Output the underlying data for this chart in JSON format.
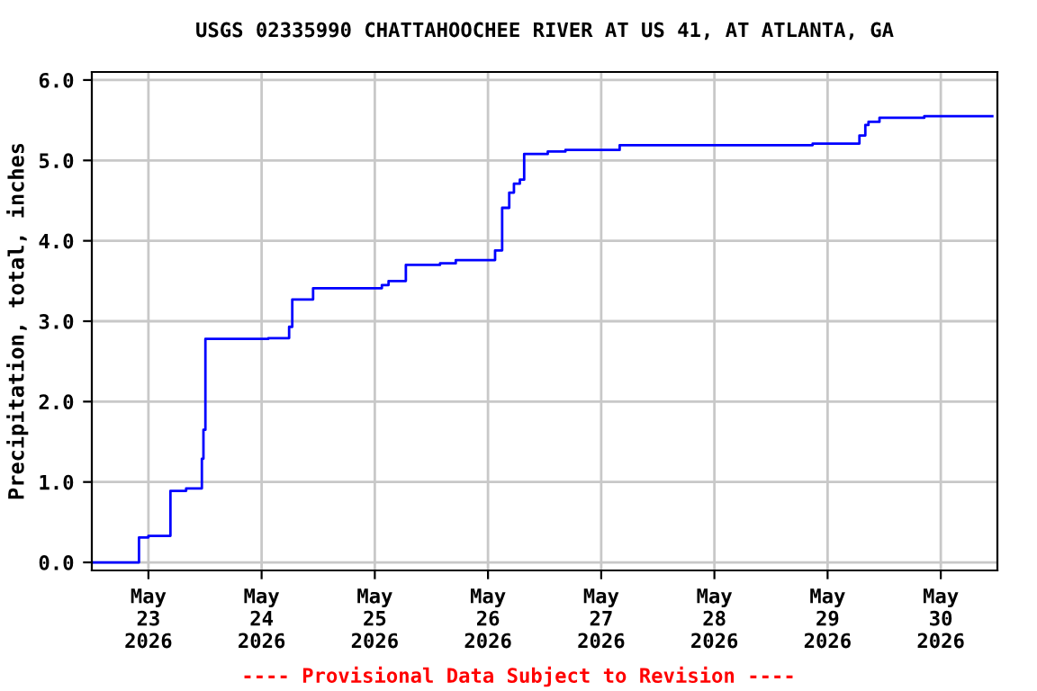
{
  "chart_data": {
    "type": "step",
    "title": "USGS 02335990 CHATTAHOOCHEE RIVER AT US 41, AT ATLANTA, GA",
    "ylabel": "Precipitation, total, inches",
    "annotations": [
      "---- Provisional Data Subject to Revision ----"
    ],
    "x": [
      "2026-05-22T12:15",
      "2026-05-22T22:00",
      "2026-05-23T00:00",
      "2026-05-23T04:40",
      "2026-05-23T08:00",
      "2026-05-23T11:20",
      "2026-05-23T11:40",
      "2026-05-23T12:05",
      "2026-05-24T01:25",
      "2026-05-24T05:50",
      "2026-05-24T06:30",
      "2026-05-24T10:55",
      "2026-05-25T01:30",
      "2026-05-25T02:55",
      "2026-05-25T06:35",
      "2026-05-25T13:50",
      "2026-05-25T17:10",
      "2026-05-26T01:30",
      "2026-05-26T03:00",
      "2026-05-26T04:30",
      "2026-05-26T05:30",
      "2026-05-26T06:45",
      "2026-05-26T07:40",
      "2026-05-26T12:40",
      "2026-05-26T16:25",
      "2026-05-27T03:55",
      "2026-05-28T20:50",
      "2026-05-29T06:45",
      "2026-05-29T08:00",
      "2026-05-29T08:40",
      "2026-05-29T11:00",
      "2026-05-29T20:30",
      "2026-05-30T10:55"
    ],
    "series": [
      {
        "color": "#0000ff",
        "values": [
          0.0,
          0.31,
          0.33,
          0.89,
          0.92,
          1.29,
          1.65,
          2.78,
          2.79,
          2.93,
          3.27,
          3.41,
          3.45,
          3.5,
          3.7,
          3.72,
          3.76,
          3.88,
          4.41,
          4.6,
          4.71,
          4.76,
          5.08,
          5.11,
          5.13,
          5.19,
          5.21,
          5.31,
          5.44,
          5.48,
          5.53,
          5.55,
          5.55
        ]
      }
    ],
    "xlim": [
      "2026-05-22T12:00",
      "2026-05-30T12:00"
    ],
    "xticks": [
      {
        "value": "2026-05-23",
        "label": "May\n23\n2026"
      },
      {
        "value": "2026-05-24",
        "label": "May\n24\n2026"
      },
      {
        "value": "2026-05-25",
        "label": "May\n25\n2026"
      },
      {
        "value": "2026-05-26",
        "label": "May\n26\n2026"
      },
      {
        "value": "2026-05-27",
        "label": "May\n27\n2026"
      },
      {
        "value": "2026-05-28",
        "label": "May\n28\n2026"
      },
      {
        "value": "2026-05-29",
        "label": "May\n29\n2026"
      },
      {
        "value": "2026-05-30",
        "label": "May\n30\n2026"
      }
    ],
    "ylim": [
      -0.1,
      6.1
    ],
    "yticks": [
      {
        "value": 0,
        "label": "0.0"
      },
      {
        "value": 1,
        "label": "1.0"
      },
      {
        "value": 2,
        "label": "2.0"
      },
      {
        "value": 3,
        "label": "3.0"
      },
      {
        "value": 4,
        "label": "4.0"
      },
      {
        "value": 5,
        "label": "5.0"
      },
      {
        "value": 6,
        "label": "6.0"
      }
    ],
    "grid": true,
    "legend": false
  }
}
